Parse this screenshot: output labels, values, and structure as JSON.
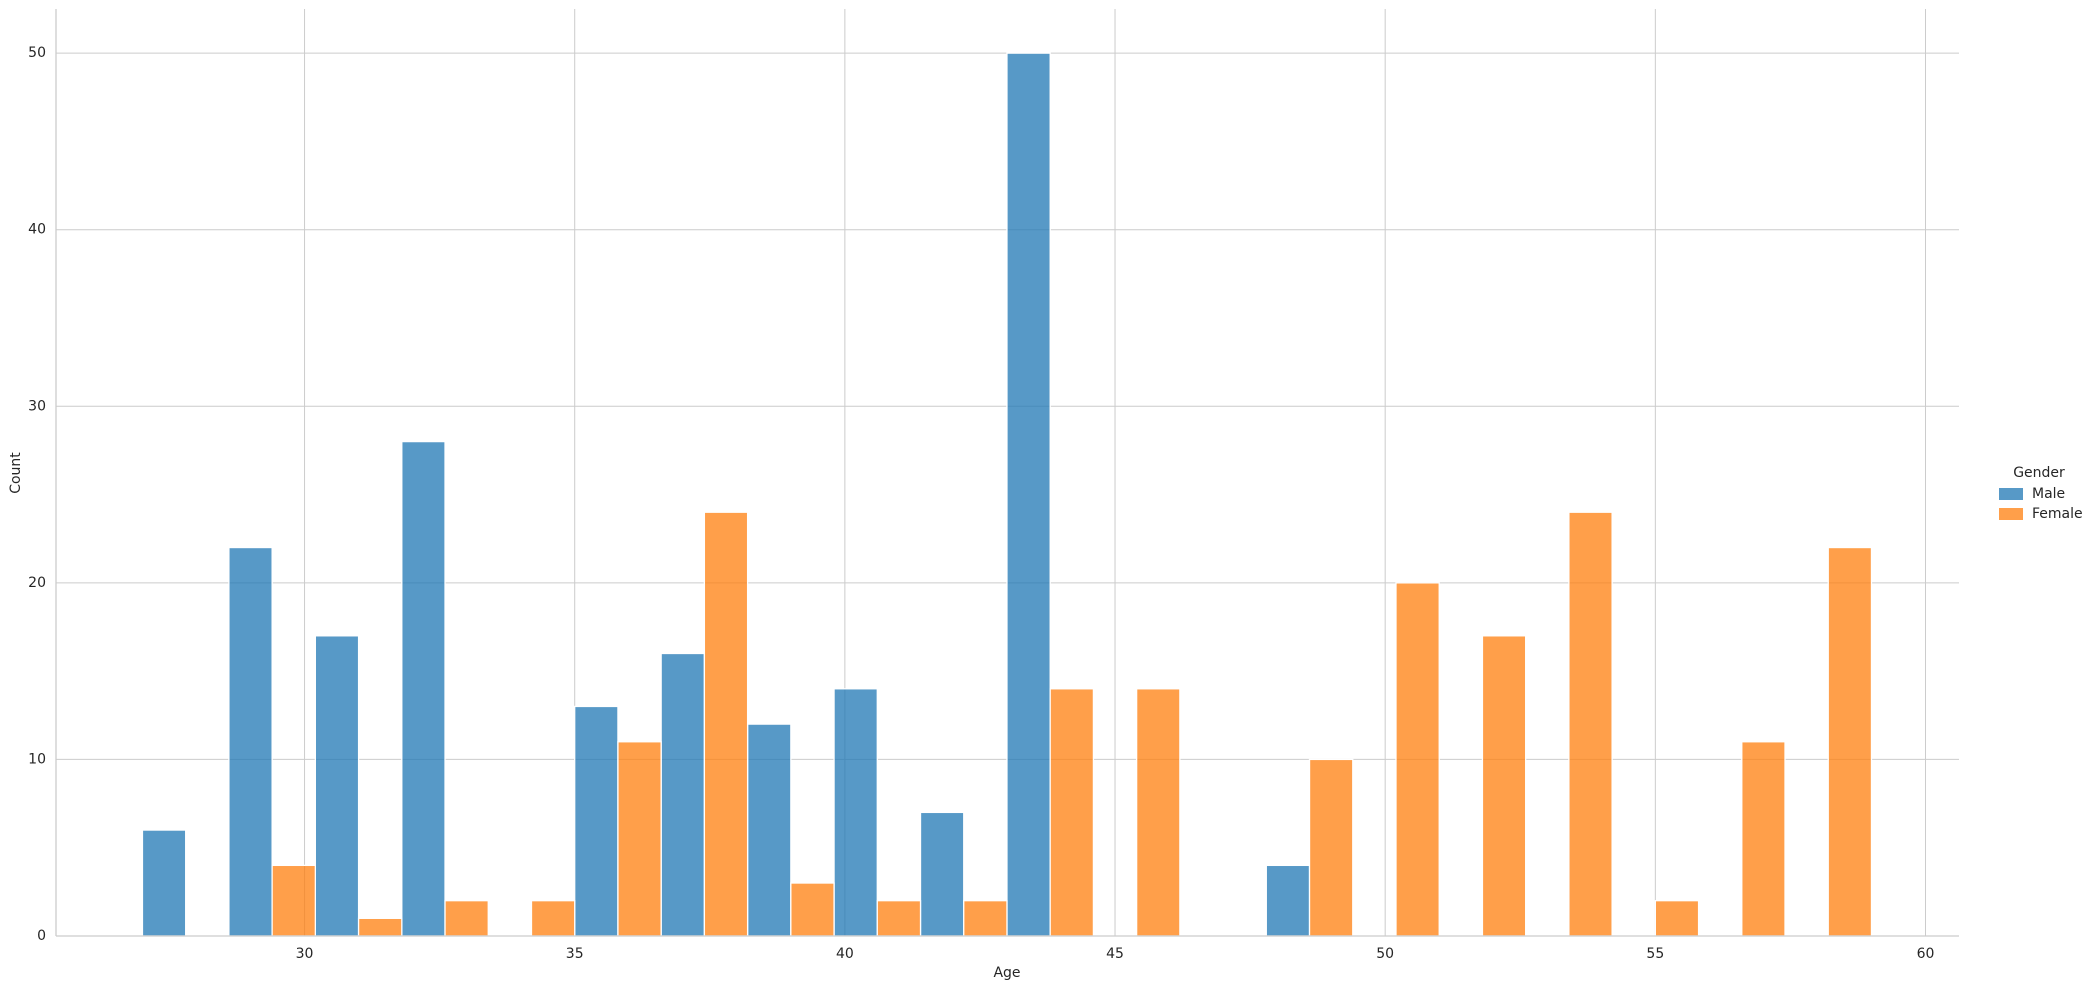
{
  "chart_data": {
    "type": "histogram",
    "x_label": "Age",
    "y_label": "Count",
    "legend_title": "Gender",
    "legend_position": "right",
    "grid": true,
    "bins": [
      27,
      28.6,
      30.2,
      31.8,
      33.4,
      35,
      36.6,
      38.2,
      39.8,
      41.4,
      43,
      44.6,
      46.2,
      47.8,
      49.4,
      51,
      52.6,
      54.2,
      55.8,
      57.4,
      59
    ],
    "series": [
      {
        "name": "Male",
        "color": "#1f77b4",
        "values": [
          6,
          22,
          17,
          28,
          0,
          13,
          16,
          12,
          14,
          7,
          50,
          0,
          0,
          4,
          0,
          0,
          0,
          0,
          0,
          0
        ]
      },
      {
        "name": "Female",
        "color": "#ff7f0e",
        "values": [
          0,
          4,
          1,
          2,
          2,
          11,
          24,
          3,
          2,
          2,
          14,
          14,
          0,
          10,
          20,
          17,
          24,
          2,
          11,
          22
        ]
      }
    ],
    "xlim": [
      25.4,
      60.62
    ],
    "xticks": [
      30,
      35,
      40,
      45,
      50,
      55,
      60
    ],
    "ylim": [
      0,
      52.5
    ],
    "yticks": [
      0,
      10,
      20,
      30,
      40,
      50
    ]
  }
}
